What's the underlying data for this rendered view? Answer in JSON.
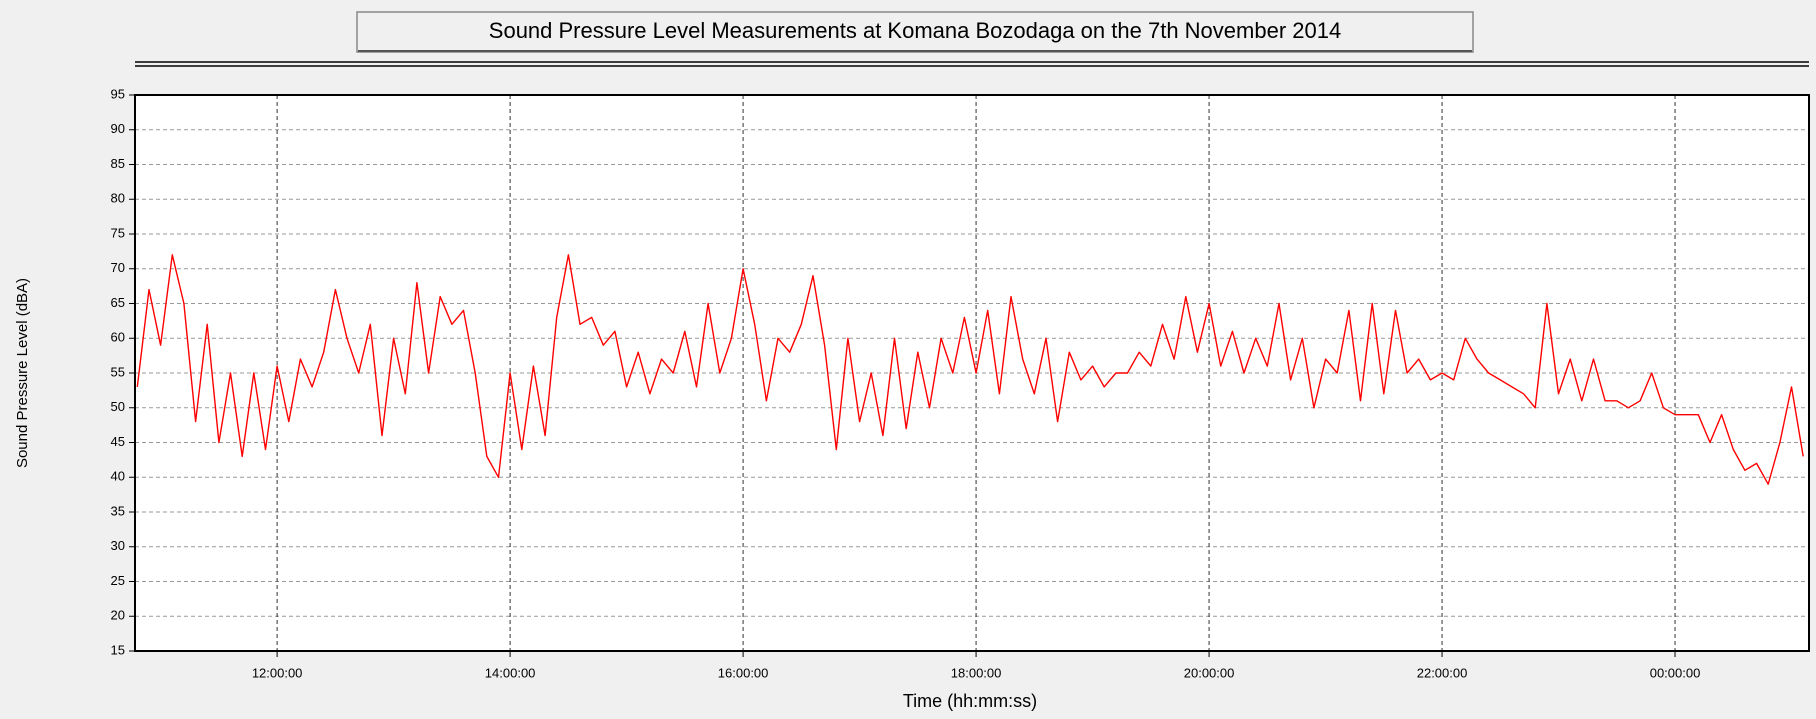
{
  "chart_data": {
    "type": "line",
    "title": "Sound Pressure Level Measurements at Komana Bozodaga on the 7th November 2014",
    "xlabel": "Time (hh:mm:ss)",
    "ylabel": "Sound Pressure Level (dBA)",
    "color": "#ff0000",
    "grid": true,
    "xlim": [
      10.78,
      25.15
    ],
    "ylim": [
      15,
      95
    ],
    "yticks": [
      15,
      20,
      25,
      30,
      35,
      40,
      45,
      50,
      55,
      60,
      65,
      70,
      75,
      80,
      85,
      90,
      95
    ],
    "xticks": [
      {
        "value": 12,
        "label": "12:00:00"
      },
      {
        "value": 14,
        "label": "14:00:00"
      },
      {
        "value": 16,
        "label": "16:00:00"
      },
      {
        "value": 18,
        "label": "18:00:00"
      },
      {
        "value": 20,
        "label": "20:00:00"
      },
      {
        "value": 22,
        "label": "22:00:00"
      },
      {
        "value": 24,
        "label": "00:00:00"
      }
    ],
    "x": [
      10.8,
      10.9,
      11.0,
      11.1,
      11.2,
      11.3,
      11.4,
      11.5,
      11.6,
      11.7,
      11.8,
      11.9,
      12.0,
      12.1,
      12.2,
      12.3,
      12.4,
      12.5,
      12.6,
      12.7,
      12.8,
      12.9,
      13.0,
      13.1,
      13.2,
      13.3,
      13.4,
      13.5,
      13.6,
      13.7,
      13.8,
      13.9,
      14.0,
      14.1,
      14.2,
      14.3,
      14.4,
      14.5,
      14.6,
      14.7,
      14.8,
      14.9,
      15.0,
      15.1,
      15.2,
      15.3,
      15.4,
      15.5,
      15.6,
      15.7,
      15.8,
      15.9,
      16.0,
      16.1,
      16.2,
      16.3,
      16.4,
      16.5,
      16.6,
      16.7,
      16.8,
      16.9,
      17.0,
      17.1,
      17.2,
      17.3,
      17.4,
      17.5,
      17.6,
      17.7,
      17.8,
      17.9,
      18.0,
      18.1,
      18.2,
      18.3,
      18.4,
      18.5,
      18.6,
      18.7,
      18.8,
      18.9,
      19.0,
      19.1,
      19.2,
      19.3,
      19.4,
      19.5,
      19.6,
      19.7,
      19.8,
      19.9,
      20.0,
      20.1,
      20.2,
      20.3,
      20.4,
      20.5,
      20.6,
      20.7,
      20.8,
      20.9,
      21.0,
      21.1,
      21.2,
      21.3,
      21.4,
      21.5,
      21.6,
      21.7,
      21.8,
      21.9,
      22.0,
      22.1,
      22.2,
      22.3,
      22.4,
      22.5,
      22.6,
      22.7,
      22.8,
      22.9,
      23.0,
      23.1,
      23.2,
      23.3,
      23.4,
      23.5,
      23.6,
      23.7,
      23.8,
      23.9,
      24.0,
      24.1,
      24.2,
      24.3,
      24.4,
      24.5,
      24.6,
      24.7,
      24.8,
      24.9,
      25.0,
      25.1
    ],
    "values": [
      53,
      67,
      59,
      72,
      65,
      48,
      62,
      45,
      55,
      43,
      55,
      44,
      56,
      48,
      57,
      53,
      58,
      67,
      60,
      55,
      62,
      46,
      60,
      52,
      68,
      55,
      66,
      62,
      64,
      55,
      43,
      40,
      55,
      44,
      56,
      46,
      63,
      72,
      62,
      63,
      59,
      61,
      53,
      58,
      52,
      57,
      55,
      61,
      53,
      65,
      55,
      60,
      70,
      62,
      51,
      60,
      58,
      62,
      69,
      59,
      44,
      60,
      48,
      55,
      46,
      60,
      47,
      58,
      50,
      60,
      55,
      63,
      55,
      64,
      52,
      66,
      57,
      52,
      60,
      48,
      58,
      54,
      56,
      53,
      55,
      55,
      58,
      56,
      62,
      57,
      66,
      58,
      65,
      56,
      61,
      55,
      60,
      56,
      65,
      54,
      60,
      50,
      57,
      55,
      64,
      51,
      65,
      52,
      64,
      55,
      57,
      54,
      55,
      54,
      60,
      57,
      55,
      54,
      53,
      52,
      50,
      65,
      52,
      57,
      51,
      57,
      51,
      51,
      50,
      51,
      55,
      50,
      49,
      49,
      49,
      45,
      49,
      44,
      41,
      42,
      39,
      45,
      53,
      43
    ]
  }
}
